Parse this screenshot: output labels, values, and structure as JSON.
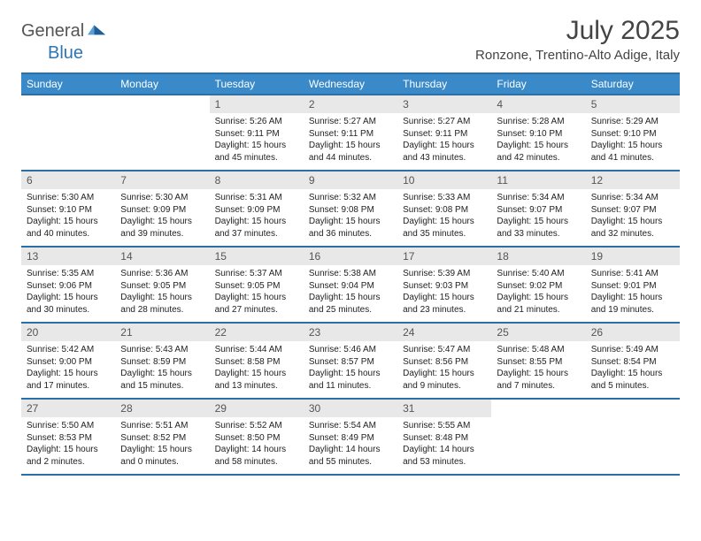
{
  "logo": {
    "text1": "General",
    "text2": "Blue"
  },
  "title": "July 2025",
  "location": "Ronzone, Trentino-Alto Adige, Italy",
  "colors": {
    "header_bg": "#3a8ac9",
    "border": "#2e6fa3",
    "day_head_bg": "#e8e8e8",
    "logo_blue": "#2e75b6",
    "text": "#333333"
  },
  "days_of_week": [
    "Sunday",
    "Monday",
    "Tuesday",
    "Wednesday",
    "Thursday",
    "Friday",
    "Saturday"
  ],
  "weeks": [
    [
      null,
      null,
      {
        "n": "1",
        "sr": "Sunrise: 5:26 AM",
        "ss": "Sunset: 9:11 PM",
        "d1": "Daylight: 15 hours",
        "d2": "and 45 minutes."
      },
      {
        "n": "2",
        "sr": "Sunrise: 5:27 AM",
        "ss": "Sunset: 9:11 PM",
        "d1": "Daylight: 15 hours",
        "d2": "and 44 minutes."
      },
      {
        "n": "3",
        "sr": "Sunrise: 5:27 AM",
        "ss": "Sunset: 9:11 PM",
        "d1": "Daylight: 15 hours",
        "d2": "and 43 minutes."
      },
      {
        "n": "4",
        "sr": "Sunrise: 5:28 AM",
        "ss": "Sunset: 9:10 PM",
        "d1": "Daylight: 15 hours",
        "d2": "and 42 minutes."
      },
      {
        "n": "5",
        "sr": "Sunrise: 5:29 AM",
        "ss": "Sunset: 9:10 PM",
        "d1": "Daylight: 15 hours",
        "d2": "and 41 minutes."
      }
    ],
    [
      {
        "n": "6",
        "sr": "Sunrise: 5:30 AM",
        "ss": "Sunset: 9:10 PM",
        "d1": "Daylight: 15 hours",
        "d2": "and 40 minutes."
      },
      {
        "n": "7",
        "sr": "Sunrise: 5:30 AM",
        "ss": "Sunset: 9:09 PM",
        "d1": "Daylight: 15 hours",
        "d2": "and 39 minutes."
      },
      {
        "n": "8",
        "sr": "Sunrise: 5:31 AM",
        "ss": "Sunset: 9:09 PM",
        "d1": "Daylight: 15 hours",
        "d2": "and 37 minutes."
      },
      {
        "n": "9",
        "sr": "Sunrise: 5:32 AM",
        "ss": "Sunset: 9:08 PM",
        "d1": "Daylight: 15 hours",
        "d2": "and 36 minutes."
      },
      {
        "n": "10",
        "sr": "Sunrise: 5:33 AM",
        "ss": "Sunset: 9:08 PM",
        "d1": "Daylight: 15 hours",
        "d2": "and 35 minutes."
      },
      {
        "n": "11",
        "sr": "Sunrise: 5:34 AM",
        "ss": "Sunset: 9:07 PM",
        "d1": "Daylight: 15 hours",
        "d2": "and 33 minutes."
      },
      {
        "n": "12",
        "sr": "Sunrise: 5:34 AM",
        "ss": "Sunset: 9:07 PM",
        "d1": "Daylight: 15 hours",
        "d2": "and 32 minutes."
      }
    ],
    [
      {
        "n": "13",
        "sr": "Sunrise: 5:35 AM",
        "ss": "Sunset: 9:06 PM",
        "d1": "Daylight: 15 hours",
        "d2": "and 30 minutes."
      },
      {
        "n": "14",
        "sr": "Sunrise: 5:36 AM",
        "ss": "Sunset: 9:05 PM",
        "d1": "Daylight: 15 hours",
        "d2": "and 28 minutes."
      },
      {
        "n": "15",
        "sr": "Sunrise: 5:37 AM",
        "ss": "Sunset: 9:05 PM",
        "d1": "Daylight: 15 hours",
        "d2": "and 27 minutes."
      },
      {
        "n": "16",
        "sr": "Sunrise: 5:38 AM",
        "ss": "Sunset: 9:04 PM",
        "d1": "Daylight: 15 hours",
        "d2": "and 25 minutes."
      },
      {
        "n": "17",
        "sr": "Sunrise: 5:39 AM",
        "ss": "Sunset: 9:03 PM",
        "d1": "Daylight: 15 hours",
        "d2": "and 23 minutes."
      },
      {
        "n": "18",
        "sr": "Sunrise: 5:40 AM",
        "ss": "Sunset: 9:02 PM",
        "d1": "Daylight: 15 hours",
        "d2": "and 21 minutes."
      },
      {
        "n": "19",
        "sr": "Sunrise: 5:41 AM",
        "ss": "Sunset: 9:01 PM",
        "d1": "Daylight: 15 hours",
        "d2": "and 19 minutes."
      }
    ],
    [
      {
        "n": "20",
        "sr": "Sunrise: 5:42 AM",
        "ss": "Sunset: 9:00 PM",
        "d1": "Daylight: 15 hours",
        "d2": "and 17 minutes."
      },
      {
        "n": "21",
        "sr": "Sunrise: 5:43 AM",
        "ss": "Sunset: 8:59 PM",
        "d1": "Daylight: 15 hours",
        "d2": "and 15 minutes."
      },
      {
        "n": "22",
        "sr": "Sunrise: 5:44 AM",
        "ss": "Sunset: 8:58 PM",
        "d1": "Daylight: 15 hours",
        "d2": "and 13 minutes."
      },
      {
        "n": "23",
        "sr": "Sunrise: 5:46 AM",
        "ss": "Sunset: 8:57 PM",
        "d1": "Daylight: 15 hours",
        "d2": "and 11 minutes."
      },
      {
        "n": "24",
        "sr": "Sunrise: 5:47 AM",
        "ss": "Sunset: 8:56 PM",
        "d1": "Daylight: 15 hours",
        "d2": "and 9 minutes."
      },
      {
        "n": "25",
        "sr": "Sunrise: 5:48 AM",
        "ss": "Sunset: 8:55 PM",
        "d1": "Daylight: 15 hours",
        "d2": "and 7 minutes."
      },
      {
        "n": "26",
        "sr": "Sunrise: 5:49 AM",
        "ss": "Sunset: 8:54 PM",
        "d1": "Daylight: 15 hours",
        "d2": "and 5 minutes."
      }
    ],
    [
      {
        "n": "27",
        "sr": "Sunrise: 5:50 AM",
        "ss": "Sunset: 8:53 PM",
        "d1": "Daylight: 15 hours",
        "d2": "and 2 minutes."
      },
      {
        "n": "28",
        "sr": "Sunrise: 5:51 AM",
        "ss": "Sunset: 8:52 PM",
        "d1": "Daylight: 15 hours",
        "d2": "and 0 minutes."
      },
      {
        "n": "29",
        "sr": "Sunrise: 5:52 AM",
        "ss": "Sunset: 8:50 PM",
        "d1": "Daylight: 14 hours",
        "d2": "and 58 minutes."
      },
      {
        "n": "30",
        "sr": "Sunrise: 5:54 AM",
        "ss": "Sunset: 8:49 PM",
        "d1": "Daylight: 14 hours",
        "d2": "and 55 minutes."
      },
      {
        "n": "31",
        "sr": "Sunrise: 5:55 AM",
        "ss": "Sunset: 8:48 PM",
        "d1": "Daylight: 14 hours",
        "d2": "and 53 minutes."
      },
      null,
      null
    ]
  ]
}
